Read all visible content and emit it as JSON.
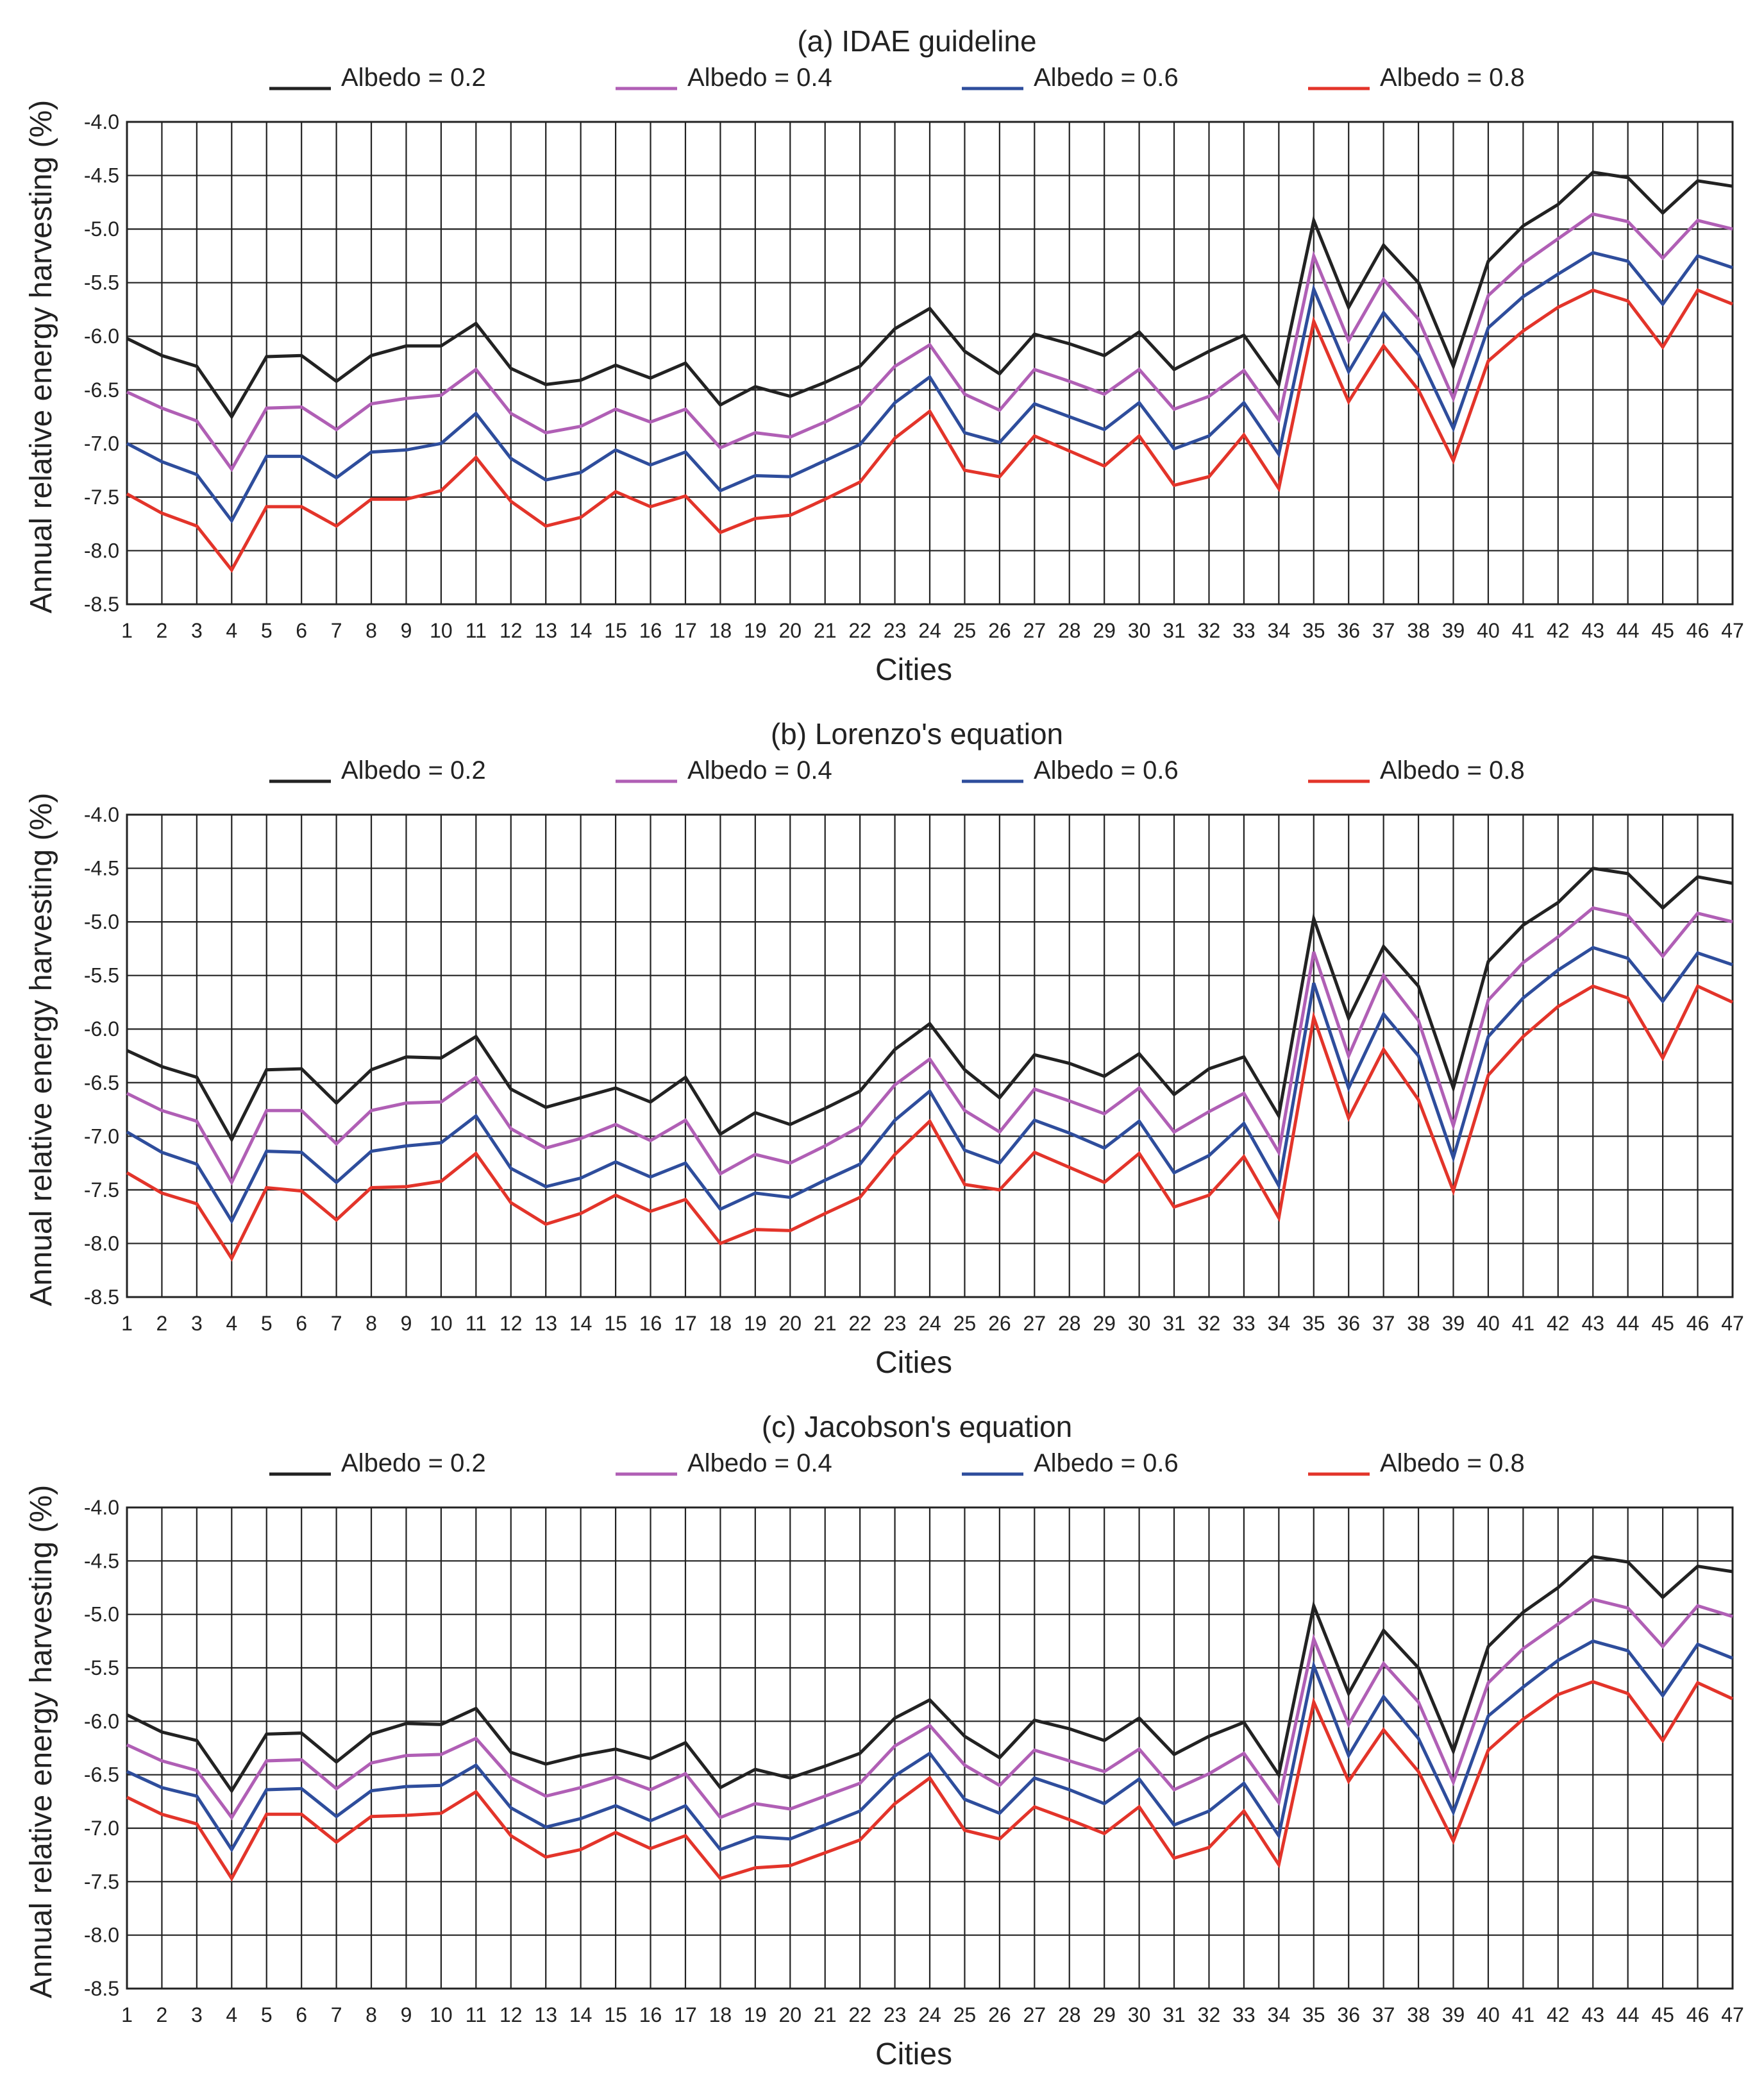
{
  "chart_data": [
    {
      "type": "line",
      "title": "(a) IDAE guideline",
      "xlabel": "Cities",
      "ylabel": "Annual relative energy harvesting (%)",
      "ylim": [
        -8.5,
        -4.0
      ],
      "grid": true,
      "legend_position": "top",
      "categories": [
        "1",
        "2",
        "3",
        "4",
        "5",
        "6",
        "7",
        "8",
        "9",
        "10",
        "11",
        "12",
        "13",
        "14",
        "15",
        "16",
        "17",
        "18",
        "19",
        "20",
        "21",
        "22",
        "23",
        "24",
        "25",
        "26",
        "27",
        "28",
        "29",
        "30",
        "31",
        "32",
        "33",
        "34",
        "35",
        "36",
        "37",
        "38",
        "39",
        "40",
        "41",
        "42",
        "43",
        "44",
        "45",
        "46",
        "47"
      ],
      "yticks": [
        "-4.0",
        "-4.5",
        "-5.0",
        "-5.5",
        "-6.0",
        "-6.5",
        "-7.0",
        "-7.5",
        "-8.0",
        "-8.5"
      ],
      "series": [
        {
          "name": "Albedo = 0.2",
          "color": "#222222",
          "values": [
            -6.02,
            -6.18,
            -6.28,
            -6.75,
            -6.19,
            -6.18,
            -6.42,
            -6.18,
            -6.09,
            -6.09,
            -5.88,
            -6.3,
            -6.45,
            -6.41,
            -6.27,
            -6.39,
            -6.25,
            -6.64,
            -6.47,
            -6.56,
            -6.43,
            -6.28,
            -5.93,
            -5.74,
            -6.14,
            -6.35,
            -5.98,
            -6.07,
            -6.18,
            -5.96,
            -6.31,
            -6.14,
            -5.99,
            -6.45,
            -4.92,
            -5.73,
            -5.15,
            -5.5,
            -6.28,
            -5.3,
            -4.97,
            -4.77,
            -4.47,
            -4.52,
            -4.85,
            -4.55,
            -4.6
          ]
        },
        {
          "name": "Albedo = 0.4",
          "color": "#b05fb5",
          "values": [
            -6.52,
            -6.67,
            -6.79,
            -7.24,
            -6.67,
            -6.66,
            -6.87,
            -6.63,
            -6.58,
            -6.55,
            -6.31,
            -6.72,
            -6.9,
            -6.84,
            -6.68,
            -6.8,
            -6.68,
            -7.04,
            -6.9,
            -6.94,
            -6.8,
            -6.64,
            -6.28,
            -6.08,
            -6.54,
            -6.69,
            -6.31,
            -6.42,
            -6.54,
            -6.31,
            -6.68,
            -6.56,
            -6.32,
            -6.78,
            -5.25,
            -6.04,
            -5.47,
            -5.84,
            -6.58,
            -5.62,
            -5.32,
            -5.09,
            -4.86,
            -4.93,
            -5.27,
            -4.92,
            -5.0
          ]
        },
        {
          "name": "Albedo = 0.6",
          "color": "#2e4d9c",
          "values": [
            -7.0,
            -7.17,
            -7.29,
            -7.72,
            -7.12,
            -7.12,
            -7.32,
            -7.08,
            -7.06,
            -7.0,
            -6.72,
            -7.14,
            -7.34,
            -7.27,
            -7.06,
            -7.2,
            -7.08,
            -7.44,
            -7.3,
            -7.31,
            -7.16,
            -7.01,
            -6.62,
            -6.38,
            -6.9,
            -6.99,
            -6.63,
            -6.75,
            -6.87,
            -6.62,
            -7.05,
            -6.93,
            -6.62,
            -7.1,
            -5.56,
            -6.33,
            -5.78,
            -6.17,
            -6.86,
            -5.92,
            -5.63,
            -5.42,
            -5.22,
            -5.3,
            -5.7,
            -5.25,
            -5.36
          ]
        },
        {
          "name": "Albedo = 0.8",
          "color": "#e3342a",
          "values": [
            -7.47,
            -7.65,
            -7.77,
            -8.18,
            -7.59,
            -7.59,
            -7.77,
            -7.52,
            -7.52,
            -7.44,
            -7.13,
            -7.54,
            -7.77,
            -7.69,
            -7.45,
            -7.59,
            -7.49,
            -7.83,
            -7.7,
            -7.67,
            -7.52,
            -7.36,
            -6.95,
            -6.7,
            -7.25,
            -7.31,
            -6.93,
            -7.07,
            -7.21,
            -6.93,
            -7.39,
            -7.31,
            -6.92,
            -7.42,
            -5.86,
            -6.61,
            -6.09,
            -6.5,
            -7.16,
            -6.23,
            -5.95,
            -5.73,
            -5.57,
            -5.67,
            -6.1,
            -5.57,
            -5.7
          ]
        }
      ]
    },
    {
      "type": "line",
      "title": "(b) Lorenzo's equation",
      "xlabel": "Cities",
      "ylabel": "Annual relative energy harvesting (%)",
      "ylim": [
        -8.5,
        -4.0
      ],
      "grid": true,
      "legend_position": "top",
      "categories": [
        "1",
        "2",
        "3",
        "4",
        "5",
        "6",
        "7",
        "8",
        "9",
        "10",
        "11",
        "12",
        "13",
        "14",
        "15",
        "16",
        "17",
        "18",
        "19",
        "20",
        "21",
        "22",
        "23",
        "24",
        "25",
        "26",
        "27",
        "28",
        "29",
        "30",
        "31",
        "32",
        "33",
        "34",
        "35",
        "36",
        "37",
        "38",
        "39",
        "40",
        "41",
        "42",
        "43",
        "44",
        "45",
        "46",
        "47"
      ],
      "yticks": [
        "-4.0",
        "-4.5",
        "-5.0",
        "-5.5",
        "-6.0",
        "-6.5",
        "-7.0",
        "-7.5",
        "-8.0",
        "-8.5"
      ],
      "series": [
        {
          "name": "Albedo = 0.2",
          "color": "#222222",
          "values": [
            -6.2,
            -6.35,
            -6.45,
            -7.03,
            -6.38,
            -6.37,
            -6.69,
            -6.38,
            -6.26,
            -6.27,
            -6.07,
            -6.56,
            -6.73,
            -6.64,
            -6.55,
            -6.68,
            -6.45,
            -6.98,
            -6.78,
            -6.89,
            -6.74,
            -6.58,
            -6.19,
            -5.95,
            -6.38,
            -6.64,
            -6.24,
            -6.32,
            -6.44,
            -6.23,
            -6.61,
            -6.37,
            -6.26,
            -6.81,
            -4.97,
            -5.9,
            -5.23,
            -5.6,
            -6.55,
            -5.37,
            -5.03,
            -4.82,
            -4.5,
            -4.55,
            -4.87,
            -4.58,
            -4.64
          ]
        },
        {
          "name": "Albedo = 0.4",
          "color": "#b05fb5",
          "values": [
            -6.6,
            -6.76,
            -6.86,
            -7.43,
            -6.76,
            -6.76,
            -7.07,
            -6.76,
            -6.69,
            -6.68,
            -6.45,
            -6.93,
            -7.11,
            -7.02,
            -6.89,
            -7.04,
            -6.85,
            -7.35,
            -7.17,
            -7.25,
            -7.09,
            -6.91,
            -6.52,
            -6.28,
            -6.76,
            -6.96,
            -6.56,
            -6.67,
            -6.79,
            -6.55,
            -6.96,
            -6.77,
            -6.6,
            -7.15,
            -5.28,
            -6.25,
            -5.5,
            -5.92,
            -6.9,
            -5.73,
            -5.38,
            -5.14,
            -4.87,
            -4.94,
            -5.32,
            -4.92,
            -5.0
          ]
        },
        {
          "name": "Albedo = 0.6",
          "color": "#2e4d9c",
          "values": [
            -6.96,
            -7.15,
            -7.26,
            -7.79,
            -7.14,
            -7.15,
            -7.43,
            -7.14,
            -7.09,
            -7.06,
            -6.81,
            -7.3,
            -7.47,
            -7.39,
            -7.24,
            -7.38,
            -7.25,
            -7.68,
            -7.53,
            -7.57,
            -7.41,
            -7.26,
            -6.85,
            -6.58,
            -7.13,
            -7.25,
            -6.85,
            -6.97,
            -7.11,
            -6.86,
            -7.34,
            -7.18,
            -6.88,
            -7.46,
            -5.57,
            -6.55,
            -5.86,
            -6.25,
            -7.2,
            -6.07,
            -5.71,
            -5.45,
            -5.24,
            -5.34,
            -5.74,
            -5.29,
            -5.4
          ]
        },
        {
          "name": "Albedo = 0.8",
          "color": "#e3342a",
          "values": [
            -7.34,
            -7.53,
            -7.63,
            -8.14,
            -7.48,
            -7.51,
            -7.78,
            -7.48,
            -7.47,
            -7.42,
            -7.16,
            -7.62,
            -7.82,
            -7.72,
            -7.55,
            -7.7,
            -7.59,
            -8.0,
            -7.87,
            -7.88,
            -7.72,
            -7.57,
            -7.17,
            -6.86,
            -7.45,
            -7.5,
            -7.15,
            -7.29,
            -7.43,
            -7.16,
            -7.66,
            -7.55,
            -7.19,
            -7.76,
            -5.89,
            -6.83,
            -6.19,
            -6.66,
            -7.51,
            -6.43,
            -6.07,
            -5.79,
            -5.6,
            -5.71,
            -6.27,
            -5.6,
            -5.75
          ]
        }
      ]
    },
    {
      "type": "line",
      "title": "(c) Jacobson's equation",
      "xlabel": "Cities",
      "ylabel": "Annual relative energy harvesting (%)",
      "ylim": [
        -8.5,
        -4.0
      ],
      "grid": true,
      "legend_position": "top",
      "categories": [
        "1",
        "2",
        "3",
        "4",
        "5",
        "6",
        "7",
        "8",
        "9",
        "10",
        "11",
        "12",
        "13",
        "14",
        "15",
        "16",
        "17",
        "18",
        "19",
        "20",
        "21",
        "22",
        "23",
        "24",
        "25",
        "26",
        "27",
        "28",
        "29",
        "30",
        "31",
        "32",
        "33",
        "34",
        "35",
        "36",
        "37",
        "38",
        "39",
        "40",
        "41",
        "42",
        "43",
        "44",
        "45",
        "46",
        "47"
      ],
      "yticks": [
        "-4.0",
        "-4.5",
        "-5.0",
        "-5.5",
        "-6.0",
        "-6.5",
        "-7.0",
        "-7.5",
        "-8.0",
        "-8.5"
      ],
      "series": [
        {
          "name": "Albedo = 0.2",
          "color": "#222222",
          "values": [
            -5.94,
            -6.1,
            -6.18,
            -6.65,
            -6.12,
            -6.11,
            -6.38,
            -6.12,
            -6.02,
            -6.03,
            -5.88,
            -6.29,
            -6.4,
            -6.32,
            -6.26,
            -6.35,
            -6.2,
            -6.62,
            -6.45,
            -6.53,
            -6.42,
            -6.3,
            -5.97,
            -5.8,
            -6.14,
            -6.34,
            -5.99,
            -6.07,
            -6.18,
            -5.97,
            -6.31,
            -6.14,
            -6.01,
            -6.5,
            -4.92,
            -5.74,
            -5.15,
            -5.5,
            -6.28,
            -5.3,
            -4.98,
            -4.75,
            -4.46,
            -4.51,
            -4.84,
            -4.55,
            -4.6
          ]
        },
        {
          "name": "Albedo = 0.4",
          "color": "#b05fb5",
          "values": [
            -6.22,
            -6.37,
            -6.46,
            -6.9,
            -6.37,
            -6.36,
            -6.63,
            -6.39,
            -6.32,
            -6.31,
            -6.16,
            -6.53,
            -6.7,
            -6.62,
            -6.52,
            -6.64,
            -6.49,
            -6.9,
            -6.77,
            -6.82,
            -6.7,
            -6.58,
            -6.23,
            -6.04,
            -6.41,
            -6.6,
            -6.27,
            -6.37,
            -6.47,
            -6.26,
            -6.64,
            -6.49,
            -6.3,
            -6.76,
            -5.23,
            -6.03,
            -5.46,
            -5.82,
            -6.57,
            -5.64,
            -5.32,
            -5.09,
            -4.86,
            -4.94,
            -5.3,
            -4.92,
            -5.02
          ]
        },
        {
          "name": "Albedo = 0.6",
          "color": "#2e4d9c",
          "values": [
            -6.47,
            -6.62,
            -6.7,
            -7.2,
            -6.64,
            -6.63,
            -6.89,
            -6.65,
            -6.61,
            -6.6,
            -6.41,
            -6.81,
            -6.99,
            -6.91,
            -6.79,
            -6.93,
            -6.79,
            -7.2,
            -7.08,
            -7.1,
            -6.97,
            -6.84,
            -6.51,
            -6.3,
            -6.73,
            -6.86,
            -6.53,
            -6.64,
            -6.77,
            -6.54,
            -6.97,
            -6.84,
            -6.58,
            -7.07,
            -5.48,
            -6.32,
            -5.77,
            -6.16,
            -6.85,
            -5.95,
            -5.68,
            -5.43,
            -5.25,
            -5.34,
            -5.76,
            -5.28,
            -5.41
          ]
        },
        {
          "name": "Albedo = 0.8",
          "color": "#e3342a",
          "values": [
            -6.71,
            -6.87,
            -6.96,
            -7.47,
            -6.87,
            -6.87,
            -7.13,
            -6.89,
            -6.88,
            -6.86,
            -6.66,
            -7.07,
            -7.27,
            -7.2,
            -7.04,
            -7.19,
            -7.07,
            -7.47,
            -7.37,
            -7.35,
            -7.23,
            -7.11,
            -6.77,
            -6.53,
            -7.02,
            -7.1,
            -6.8,
            -6.92,
            -7.05,
            -6.8,
            -7.28,
            -7.18,
            -6.84,
            -7.34,
            -5.82,
            -6.56,
            -6.08,
            -6.47,
            -7.12,
            -6.27,
            -5.98,
            -5.75,
            -5.63,
            -5.74,
            -6.18,
            -5.64,
            -5.79
          ]
        }
      ]
    }
  ]
}
